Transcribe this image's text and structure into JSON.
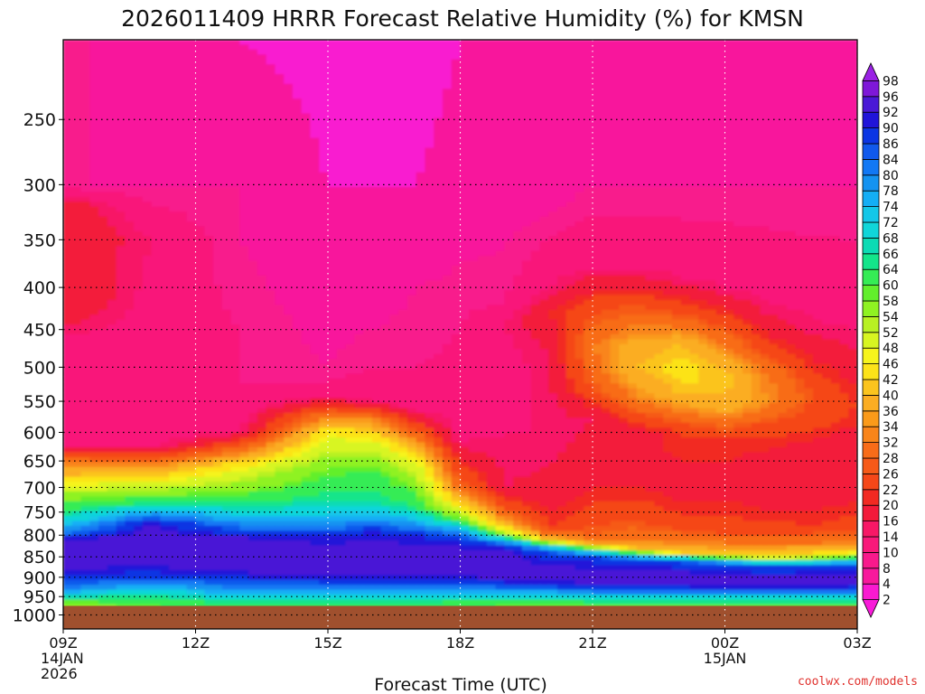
{
  "chart_data": {
    "type": "heatmap",
    "title": "2026011409 HRRR Forecast Relative Humidity (%) for KMSN",
    "xlabel": "Forecast Time (UTC)",
    "ylabel": "",
    "x_ticks": [
      {
        "hour": 0,
        "lines": [
          "09Z",
          "14JAN",
          "2026"
        ]
      },
      {
        "hour": 3,
        "lines": [
          "12Z"
        ]
      },
      {
        "hour": 6,
        "lines": [
          "15Z"
        ]
      },
      {
        "hour": 9,
        "lines": [
          "18Z"
        ]
      },
      {
        "hour": 12,
        "lines": [
          "21Z"
        ]
      },
      {
        "hour": 15,
        "lines": [
          "00Z",
          "15JAN"
        ]
      },
      {
        "hour": 18,
        "lines": [
          "03Z"
        ]
      }
    ],
    "y_ticks": [
      250,
      300,
      350,
      400,
      450,
      500,
      550,
      600,
      650,
      700,
      750,
      800,
      850,
      900,
      950,
      1000
    ],
    "y_scale": "log-pressure",
    "y_range_hPa": [
      200,
      1040
    ],
    "x_range_hours": [
      0,
      18
    ],
    "grid": true,
    "surface_pressure_hPa": 975,
    "colorbar_levels": [
      2,
      4,
      8,
      10,
      14,
      16,
      20,
      22,
      26,
      28,
      32,
      34,
      36,
      40,
      42,
      46,
      48,
      52,
      54,
      58,
      60,
      64,
      66,
      68,
      72,
      74,
      78,
      80,
      84,
      86,
      90,
      92,
      96,
      98
    ],
    "colorbar_colors": [
      "#f91ad9",
      "#f91ad0",
      "#f8199c",
      "#f81a8c",
      "#f9197a",
      "#f71866",
      "#f31a3a",
      "#f22a22",
      "#f54718",
      "#f65a18",
      "#f86c18",
      "#f9851a",
      "#fa9a1a",
      "#fbad22",
      "#fbc41e",
      "#fce319",
      "#f6f41c",
      "#d8f521",
      "#b8f123",
      "#8ff222",
      "#62ef2c",
      "#35ec55",
      "#13e58a",
      "#0cdbb4",
      "#10d6d9",
      "#13c7e8",
      "#14aef5",
      "#1493f1",
      "#1278f4",
      "#1059ec",
      "#0b35e3",
      "#2014d9",
      "#4a18d6",
      "#7e17d8",
      "#9a22e4"
    ],
    "profiles": [
      {
        "hour": 0,
        "rh": [
          [
            200,
            10
          ],
          [
            300,
            8
          ],
          [
            320,
            20
          ],
          [
            420,
            20
          ],
          [
            470,
            12
          ],
          [
            560,
            10
          ],
          [
            620,
            12
          ],
          [
            650,
            30
          ],
          [
            690,
            46
          ],
          [
            730,
            60
          ],
          [
            760,
            66
          ],
          [
            790,
            80
          ],
          [
            810,
            92
          ],
          [
            840,
            96
          ],
          [
            880,
            92
          ],
          [
            920,
            84
          ],
          [
            940,
            74
          ],
          [
            965,
            58
          ],
          [
            1000,
            50
          ]
        ]
      },
      {
        "hour": 2,
        "rh": [
          [
            200,
            4
          ],
          [
            300,
            8
          ],
          [
            350,
            14
          ],
          [
            450,
            12
          ],
          [
            560,
            10
          ],
          [
            620,
            12
          ],
          [
            660,
            34
          ],
          [
            700,
            52
          ],
          [
            735,
            66
          ],
          [
            755,
            80
          ],
          [
            775,
            92
          ],
          [
            820,
            96
          ],
          [
            860,
            94
          ],
          [
            900,
            88
          ],
          [
            925,
            76
          ],
          [
            945,
            66
          ],
          [
            975,
            60
          ],
          [
            1000,
            56
          ]
        ]
      },
      {
        "hour": 4,
        "rh": [
          [
            200,
            4
          ],
          [
            260,
            8
          ],
          [
            350,
            8
          ],
          [
            450,
            10
          ],
          [
            550,
            10
          ],
          [
            600,
            14
          ],
          [
            630,
            30
          ],
          [
            660,
            46
          ],
          [
            700,
            56
          ],
          [
            740,
            66
          ],
          [
            775,
            80
          ],
          [
            805,
            92
          ],
          [
            860,
            96
          ],
          [
            900,
            90
          ],
          [
            935,
            78
          ],
          [
            960,
            66
          ],
          [
            1000,
            60
          ]
        ]
      },
      {
        "hour": 6,
        "rh": [
          [
            200,
            2
          ],
          [
            300,
            4
          ],
          [
            400,
            6
          ],
          [
            500,
            8
          ],
          [
            540,
            12
          ],
          [
            570,
            30
          ],
          [
            600,
            46
          ],
          [
            640,
            54
          ],
          [
            690,
            62
          ],
          [
            740,
            68
          ],
          [
            780,
            80
          ],
          [
            800,
            90
          ],
          [
            860,
            96
          ],
          [
            900,
            92
          ],
          [
            930,
            78
          ],
          [
            960,
            66
          ],
          [
            1000,
            60
          ]
        ]
      },
      {
        "hour": 7,
        "rh": [
          [
            200,
            2
          ],
          [
            300,
            4
          ],
          [
            400,
            6
          ],
          [
            500,
            10
          ],
          [
            550,
            14
          ],
          [
            580,
            34
          ],
          [
            620,
            50
          ],
          [
            680,
            62
          ],
          [
            730,
            66
          ],
          [
            770,
            80
          ],
          [
            790,
            90
          ],
          [
            860,
            96
          ],
          [
            900,
            92
          ],
          [
            930,
            78
          ],
          [
            960,
            66
          ],
          [
            1000,
            60
          ]
        ]
      },
      {
        "hour": 8,
        "rh": [
          [
            200,
            2
          ],
          [
            300,
            4
          ],
          [
            400,
            8
          ],
          [
            500,
            10
          ],
          [
            560,
            12
          ],
          [
            600,
            28
          ],
          [
            650,
            48
          ],
          [
            700,
            58
          ],
          [
            740,
            64
          ],
          [
            780,
            80
          ],
          [
            800,
            90
          ],
          [
            860,
            96
          ],
          [
            900,
            92
          ],
          [
            935,
            78
          ],
          [
            960,
            66
          ],
          [
            1000,
            60
          ]
        ]
      },
      {
        "hour": 9,
        "rh": [
          [
            200,
            4
          ],
          [
            300,
            6
          ],
          [
            450,
            10
          ],
          [
            600,
            12
          ],
          [
            640,
            18
          ],
          [
            700,
            30
          ],
          [
            740,
            46
          ],
          [
            770,
            62
          ],
          [
            790,
            78
          ],
          [
            810,
            90
          ],
          [
            870,
            96
          ],
          [
            905,
            90
          ],
          [
            935,
            76
          ],
          [
            960,
            64
          ],
          [
            1000,
            58
          ]
        ]
      },
      {
        "hour": 10,
        "rh": [
          [
            200,
            4
          ],
          [
            300,
            6
          ],
          [
            420,
            10
          ],
          [
            440,
            14
          ],
          [
            500,
            12
          ],
          [
            700,
            16
          ],
          [
            750,
            28
          ],
          [
            780,
            40
          ],
          [
            800,
            58
          ],
          [
            815,
            80
          ],
          [
            830,
            92
          ],
          [
            890,
            96
          ],
          [
            920,
            88
          ],
          [
            945,
            72
          ],
          [
            965,
            62
          ],
          [
            1000,
            56
          ]
        ]
      },
      {
        "hour": 11,
        "rh": [
          [
            200,
            4
          ],
          [
            300,
            6
          ],
          [
            400,
            14
          ],
          [
            430,
            20
          ],
          [
            480,
            16
          ],
          [
            600,
            14
          ],
          [
            720,
            18
          ],
          [
            780,
            22
          ],
          [
            805,
            34
          ],
          [
            820,
            60
          ],
          [
            835,
            86
          ],
          [
            900,
            96
          ],
          [
            925,
            86
          ],
          [
            950,
            70
          ],
          [
            970,
            60
          ],
          [
            1000,
            56
          ]
        ]
      },
      {
        "hour": 12,
        "rh": [
          [
            200,
            4
          ],
          [
            300,
            8
          ],
          [
            380,
            14
          ],
          [
            420,
            24
          ],
          [
            470,
            32
          ],
          [
            520,
            28
          ],
          [
            580,
            16
          ],
          [
            700,
            20
          ],
          [
            760,
            24
          ],
          [
            800,
            28
          ],
          [
            820,
            36
          ],
          [
            835,
            66
          ],
          [
            850,
            88
          ],
          [
            905,
            96
          ],
          [
            930,
            86
          ],
          [
            955,
            68
          ],
          [
            975,
            60
          ],
          [
            1000,
            58
          ]
        ]
      },
      {
        "hour": 13,
        "rh": [
          [
            200,
            4
          ],
          [
            300,
            8
          ],
          [
            380,
            14
          ],
          [
            420,
            26
          ],
          [
            470,
            38
          ],
          [
            500,
            40
          ],
          [
            540,
            34
          ],
          [
            600,
            18
          ],
          [
            700,
            20
          ],
          [
            770,
            26
          ],
          [
            810,
            32
          ],
          [
            830,
            40
          ],
          [
            845,
            68
          ],
          [
            860,
            88
          ],
          [
            910,
            96
          ],
          [
            935,
            86
          ],
          [
            955,
            68
          ],
          [
            975,
            60
          ],
          [
            1000,
            58
          ]
        ]
      },
      {
        "hour": 14,
        "rh": [
          [
            200,
            4
          ],
          [
            300,
            8
          ],
          [
            390,
            14
          ],
          [
            430,
            26
          ],
          [
            470,
            40
          ],
          [
            500,
            44
          ],
          [
            540,
            40
          ],
          [
            600,
            22
          ],
          [
            700,
            18
          ],
          [
            780,
            24
          ],
          [
            820,
            34
          ],
          [
            840,
            40
          ],
          [
            850,
            66
          ],
          [
            865,
            88
          ],
          [
            910,
            96
          ],
          [
            935,
            86
          ],
          [
            955,
            68
          ],
          [
            975,
            60
          ],
          [
            1000,
            58
          ]
        ]
      },
      {
        "hour": 15,
        "rh": [
          [
            200,
            4
          ],
          [
            300,
            8
          ],
          [
            400,
            14
          ],
          [
            440,
            24
          ],
          [
            490,
            38
          ],
          [
            520,
            42
          ],
          [
            560,
            38
          ],
          [
            610,
            22
          ],
          [
            700,
            18
          ],
          [
            790,
            24
          ],
          [
            825,
            34
          ],
          [
            845,
            42
          ],
          [
            855,
            64
          ],
          [
            870,
            88
          ],
          [
            915,
            96
          ],
          [
            935,
            86
          ],
          [
            955,
            68
          ],
          [
            975,
            60
          ],
          [
            1000,
            58
          ]
        ]
      },
      {
        "hour": 16,
        "rh": [
          [
            200,
            4
          ],
          [
            300,
            8
          ],
          [
            420,
            14
          ],
          [
            470,
            22
          ],
          [
            510,
            32
          ],
          [
            550,
            34
          ],
          [
            590,
            24
          ],
          [
            650,
            18
          ],
          [
            750,
            20
          ],
          [
            800,
            26
          ],
          [
            830,
            36
          ],
          [
            850,
            44
          ],
          [
            860,
            62
          ],
          [
            875,
            86
          ],
          [
            915,
            96
          ],
          [
            935,
            86
          ],
          [
            955,
            68
          ],
          [
            975,
            60
          ],
          [
            1000,
            58
          ]
        ]
      },
      {
        "hour": 17,
        "rh": [
          [
            200,
            4
          ],
          [
            300,
            8
          ],
          [
            440,
            14
          ],
          [
            490,
            20
          ],
          [
            540,
            26
          ],
          [
            580,
            24
          ],
          [
            630,
            18
          ],
          [
            720,
            18
          ],
          [
            780,
            22
          ],
          [
            820,
            32
          ],
          [
            845,
            44
          ],
          [
            860,
            66
          ],
          [
            875,
            88
          ],
          [
            915,
            96
          ],
          [
            935,
            86
          ],
          [
            955,
            68
          ],
          [
            975,
            60
          ],
          [
            1000,
            58
          ]
        ]
      },
      {
        "hour": 18,
        "rh": [
          [
            200,
            4
          ],
          [
            300,
            8
          ],
          [
            450,
            14
          ],
          [
            500,
            18
          ],
          [
            560,
            22
          ],
          [
            610,
            18
          ],
          [
            700,
            18
          ],
          [
            780,
            24
          ],
          [
            820,
            34
          ],
          [
            840,
            46
          ],
          [
            855,
            66
          ],
          [
            870,
            86
          ],
          [
            910,
            96
          ],
          [
            935,
            86
          ],
          [
            955,
            68
          ],
          [
            975,
            60
          ],
          [
            1000,
            58
          ]
        ]
      }
    ]
  },
  "credit": "coolwx.com/models"
}
